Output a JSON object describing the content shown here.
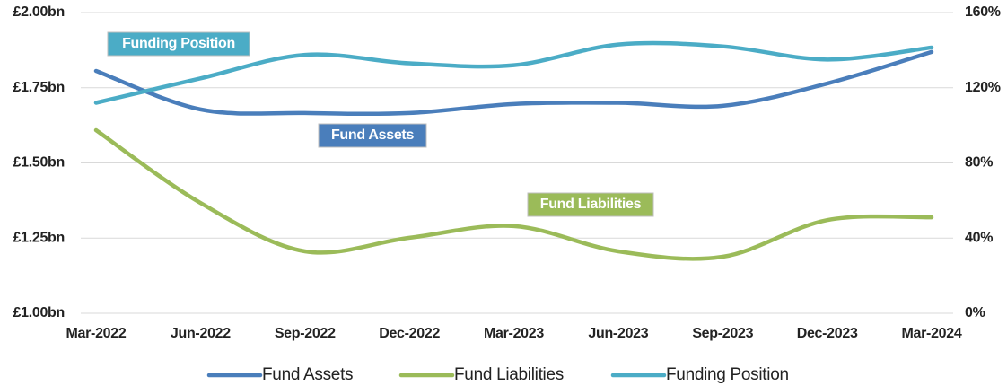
{
  "chart_data": {
    "type": "line",
    "categories": [
      "Mar-2022",
      "Jun-2022",
      "Sep-2022",
      "Dec-2022",
      "Mar-2023",
      "Jun-2023",
      "Sep-2023",
      "Dec-2023",
      "Mar-2024"
    ],
    "series": [
      {
        "name": "Fund Assets",
        "color": "#4a7ebb",
        "values": [
          1.806,
          1.678,
          1.666,
          1.666,
          1.696,
          1.7,
          1.69,
          1.764,
          1.869
        ]
      },
      {
        "name": "Fund Liabilities",
        "color": "#9bbb59",
        "values": [
          1.609,
          1.367,
          1.206,
          1.251,
          1.29,
          1.206,
          1.188,
          1.31,
          1.319
        ]
      },
      {
        "name": "Funding Position",
        "color": "#4bacc6",
        "axis": "y2",
        "values": [
          112,
          125,
          137.5,
          133,
          132,
          143,
          142,
          135,
          141.4
        ]
      }
    ],
    "annotations": [
      "Fund Assets",
      "Fund Liabilities",
      "Funding Position"
    ],
    "ylim": [
      1.0,
      2.0
    ],
    "yticks": [
      {
        "value": 1.0,
        "label": "£1.00bn"
      },
      {
        "value": 1.25,
        "label": "£1.25bn"
      },
      {
        "value": 1.5,
        "label": "£1.50bn"
      },
      {
        "value": 1.75,
        "label": "£1.75bn"
      },
      {
        "value": 2.0,
        "label": "£2.00bn"
      }
    ],
    "y2lim": [
      0,
      160
    ],
    "y2ticks": [
      {
        "value": 0,
        "label": "0%"
      },
      {
        "value": 40,
        "label": "40%"
      },
      {
        "value": 80,
        "label": "80%"
      },
      {
        "value": 120,
        "label": "120%"
      },
      {
        "value": 160,
        "label": "160%"
      }
    ],
    "grid": true,
    "legend": "bottom"
  }
}
